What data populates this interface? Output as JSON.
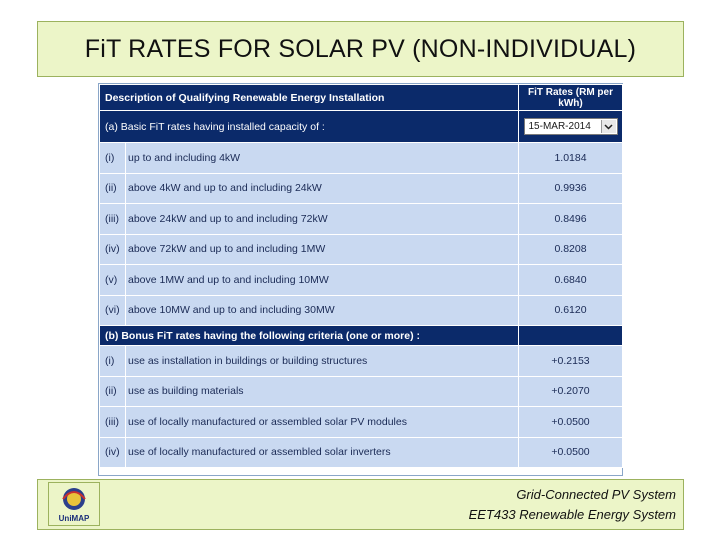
{
  "title": "FiT RATES FOR SOLAR PV (NON-INDIVIDUAL)",
  "table": {
    "header_desc": "Description of Qualifying Renewable Energy Installation",
    "header_rate": "FiT Rates (RM per kWh)",
    "section_a_label": "(a) Basic FiT rates having installed capacity of :",
    "date_select_value": "15-MAR-2014",
    "basic_rows": [
      {
        "num": "(i)",
        "desc": "up to and including 4kW",
        "rate": "1.0184"
      },
      {
        "num": "(ii)",
        "desc": "above 4kW and up to and including 24kW",
        "rate": "0.9936"
      },
      {
        "num": "(iii)",
        "desc": "above 24kW and up to and including 72kW",
        "rate": "0.8496"
      },
      {
        "num": "(iv)",
        "desc": "above 72kW and up to and including 1MW",
        "rate": "0.8208"
      },
      {
        "num": "(v)",
        "desc": "above 1MW and up to and including 10MW",
        "rate": "0.6840"
      },
      {
        "num": "(vi)",
        "desc": "above 10MW and up to and including 30MW",
        "rate": "0.6120"
      }
    ],
    "section_b_label": "(b) Bonus FiT rates having the following criteria (one or more) :",
    "bonus_rows": [
      {
        "num": "(i)",
        "desc": "use as installation in buildings or building structures",
        "rate": "+0.2153"
      },
      {
        "num": "(ii)",
        "desc": "use as building materials",
        "rate": "+0.2070"
      },
      {
        "num": "(iii)",
        "desc": "use of locally manufactured or assembled solar PV modules",
        "rate": "+0.0500"
      },
      {
        "num": "(iv)",
        "desc": "use of locally manufactured or assembled solar inverters",
        "rate": "+0.0500"
      }
    ]
  },
  "footer": {
    "line1": "Grid-Connected PV System",
    "line2": "EET433 Renewable Energy System"
  },
  "logo": {
    "text": "UniMAP",
    "icon": "university-logo-icon"
  },
  "colors": {
    "header_bg": "#0b2a6a",
    "row_bg": "#c9d9f1",
    "title_bg": "#ecf5c8",
    "title_border": "#9cb25e"
  }
}
